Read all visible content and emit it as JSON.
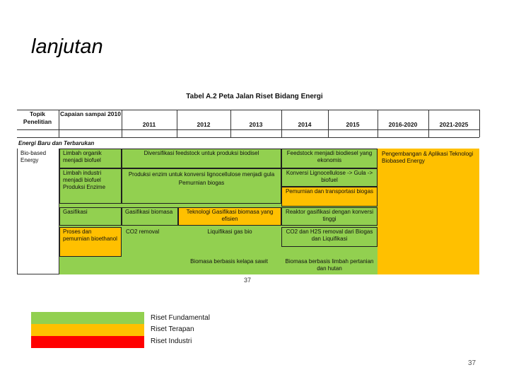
{
  "slide": {
    "title": "lanjutan",
    "page_number": "37"
  },
  "table": {
    "title": "Tabel A.2 Peta Jalan Riset Bidang Energi",
    "headers": {
      "topik": "Topik Penelitian",
      "capaian": "Capaian sampai 2010",
      "y2011": "2011",
      "y2012": "2012",
      "y2013": "2013",
      "y2014": "2014",
      "y2015": "2015",
      "y2016": "2016-2020",
      "y2021": "2021-2025"
    },
    "section": "Energi Baru dan Terbarukan",
    "topic": "Bio-based Energy",
    "capaian": {
      "c1": "Limbah organik menjadi biofuel",
      "c2": "Limbah industri menjadi biofuel",
      "c2b": "Produksi Enzime",
      "c3": "Gasifikasi",
      "c4": "Proses dan pemurnian bioethanol"
    },
    "cells": {
      "r1_a": "Diversifikasi feedstock untuk produksi biodisel",
      "r1_b": "Feedstock menjadi biodiesel yang ekonomis",
      "r1_c": "Pengembangan & Aplikasi Teknologi Biobased Energy",
      "r2_a": "Produksi enzim untuk konversi lignocellulose menjadi gula",
      "r2_a2": "Pemurnian biogas",
      "r2_b": "Konversi Lignocellulose -> Gula -> biofuel",
      "r2_b2": "Pemurnian dan transportasi biogas",
      "r3_a": "Gasifikasi biomasa",
      "r3_b": "Teknologi Gasifikasi biomasa yang efisien",
      "r3_c": "Reaktor gasifikasi dengan konversi tinggi",
      "r4_a": "CO2 removal",
      "r4_b": "Liquifikasi gas bio",
      "r4_c": "CO2 dan H2S removal dari Biogas dan Liquifikasi",
      "r5_a": "Biomasa berbasis kelapa sawit",
      "r5_b": "Biomasa berbasis limbah pertanian dan hutan"
    },
    "source_page": "37"
  },
  "legend": [
    {
      "label": "Riset Fundamental",
      "color": "#92d050"
    },
    {
      "label": "Riset Terapan",
      "color": "#ffc000"
    },
    {
      "label": "Riset Industri",
      "color": "#ff0000"
    }
  ]
}
